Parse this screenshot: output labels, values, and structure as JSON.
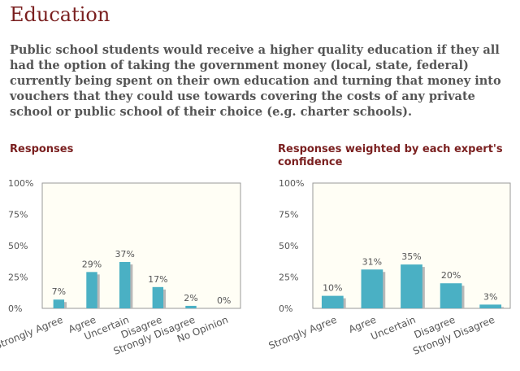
{
  "section": {
    "title": "Education"
  },
  "question": {
    "text": "Public school students would receive a higher quality education if they all had the option of taking the government money (local, state, federal) currently being spent on their own education and turning that money into vouchers that they could use towards covering the costs of any private school or public school of their choice (e.g. charter schools)."
  },
  "colors": {
    "bar": "#4ab0c4",
    "bar_shadow": "#b8b8b8",
    "plot_bg": "#fffef5",
    "plot_border": "#999999",
    "heading": "#7a1f1f",
    "axis_text": "#555555"
  },
  "chart_data": [
    {
      "type": "bar",
      "title": "Responses",
      "categories": [
        "Strongly Agree",
        "Agree",
        "Uncertain",
        "Disagree",
        "Strongly Disagree",
        "No Opinion"
      ],
      "values": [
        7,
        29,
        37,
        17,
        2,
        0
      ],
      "value_labels": [
        "7%",
        "29%",
        "37%",
        "17%",
        "2%",
        "0%"
      ],
      "yticks": [
        "100%",
        "75%",
        "50%",
        "25%",
        "0%"
      ],
      "ylim": [
        0,
        100
      ],
      "xlabel": "",
      "ylabel": ""
    },
    {
      "type": "bar",
      "title": "Responses weighted by each expert's confidence",
      "categories": [
        "Strongly Agree",
        "Agree",
        "Uncertain",
        "Disagree",
        "Strongly Disagree"
      ],
      "values": [
        10,
        31,
        35,
        20,
        3
      ],
      "value_labels": [
        "10%",
        "31%",
        "35%",
        "20%",
        "3%"
      ],
      "yticks": [
        "100%",
        "75%",
        "50%",
        "25%",
        "0%"
      ],
      "ylim": [
        0,
        100
      ],
      "xlabel": "",
      "ylabel": ""
    }
  ]
}
